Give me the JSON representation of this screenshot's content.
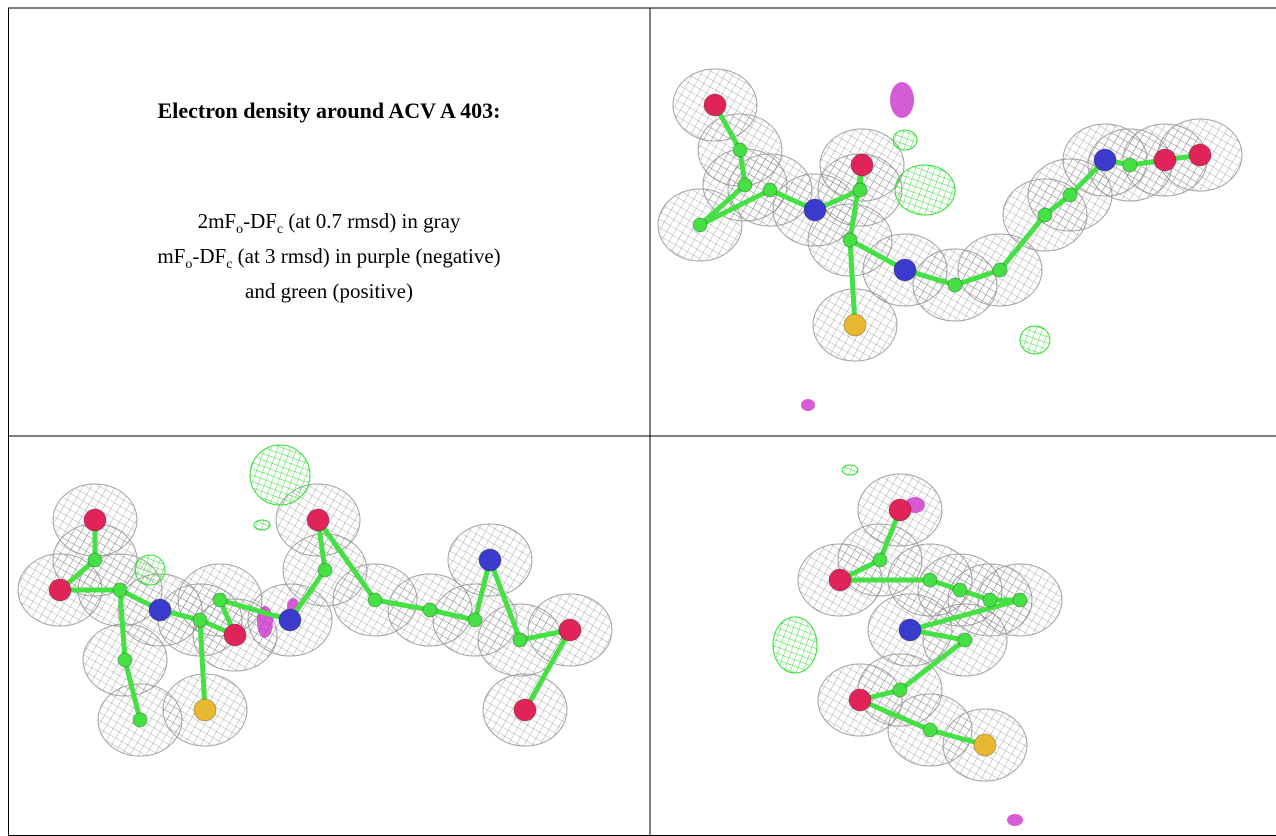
{
  "figure": {
    "title": "Electron density around ACV A 403:",
    "lines": [
      [
        "2mF",
        "o",
        "-DF",
        "c",
        " (at 0.7 rmsd) in gray"
      ],
      [
        "mF",
        "o",
        "-DF",
        "c",
        " (at 3 rmsd) in purple (negative)"
      ],
      [
        "and green (positive)"
      ]
    ]
  }
}
